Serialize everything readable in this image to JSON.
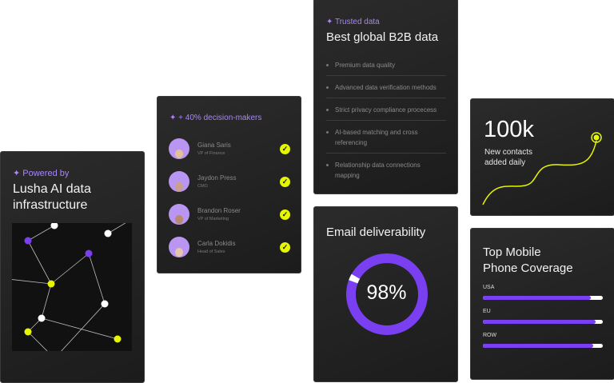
{
  "infrastructure_card": {
    "eyebrow": "✦ Powered by",
    "title_line1": "Lusha AI data",
    "title_line2": "infrastructure",
    "icon": "network-graph"
  },
  "decision_makers_card": {
    "eyebrow": "✦ + 40% decision-makers",
    "people": [
      {
        "name": "Giana Saris",
        "role": "VP of Finance",
        "verified": true
      },
      {
        "name": "Jaydon Press",
        "role": "CMO",
        "verified": true
      },
      {
        "name": "Brandon Roser",
        "role": "VP of Marketing",
        "verified": true
      },
      {
        "name": "Carla Dokidis",
        "role": "Head of Sales",
        "verified": true
      }
    ]
  },
  "trusted_card": {
    "eyebrow": "✦ Trusted data",
    "title": "Best global B2B data",
    "features": [
      "Premium data quality",
      "Advanced data verification methods",
      "Strict privacy compliance procecess",
      "AI-based matching and cross referencing",
      "Relationship data connections mapping"
    ]
  },
  "email_card": {
    "title": "Email deliverability",
    "value_label": "98%",
    "value": 98
  },
  "contacts_card": {
    "value": "100k",
    "caption_line1": "New contacts",
    "caption_line2": "added daily"
  },
  "coverage_card": {
    "title_line1": "Top Mobile",
    "title_line2": "Phone Coverage",
    "regions": [
      {
        "label": "USA",
        "percent": 90
      },
      {
        "label": "EU",
        "percent": 94
      },
      {
        "label": "ROW",
        "percent": 92
      }
    ]
  },
  "colors": {
    "accent_purple": "#7b3ff2",
    "accent_yellow": "#e5f600",
    "card_bg": "#222222"
  }
}
